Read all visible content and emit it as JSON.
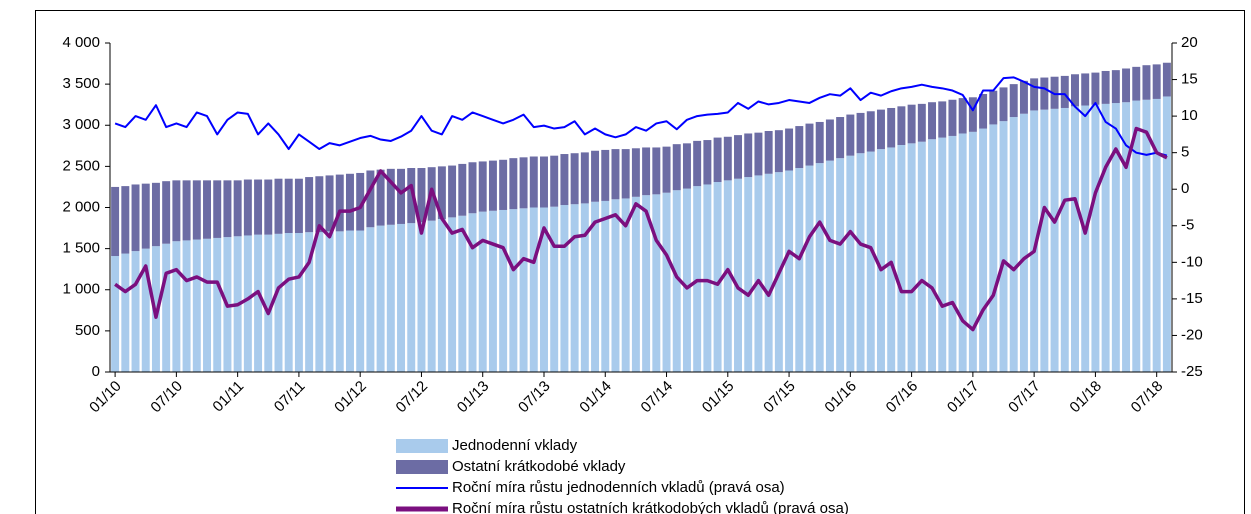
{
  "chart_data": {
    "type": "bar-line",
    "categories": [
      "01/10",
      null,
      null,
      null,
      null,
      null,
      "07/10",
      null,
      null,
      null,
      null,
      null,
      "01/11",
      null,
      null,
      null,
      null,
      null,
      "07/11",
      null,
      null,
      null,
      null,
      null,
      "01/12",
      null,
      null,
      null,
      null,
      null,
      "07/12",
      null,
      null,
      null,
      null,
      null,
      "01/13",
      null,
      null,
      null,
      null,
      null,
      "07/13",
      null,
      null,
      null,
      null,
      null,
      "01/14",
      null,
      null,
      null,
      null,
      null,
      "07/14",
      null,
      null,
      null,
      null,
      null,
      "01/15",
      null,
      null,
      null,
      null,
      null,
      "07/15",
      null,
      null,
      null,
      null,
      null,
      "01/16",
      null,
      null,
      null,
      null,
      null,
      "07/16",
      null,
      null,
      null,
      null,
      null,
      "01/17",
      null,
      null,
      null,
      null,
      null,
      "07/17",
      null,
      null,
      null,
      null,
      null,
      "01/18",
      null,
      null,
      null,
      null,
      null,
      "07/18",
      null
    ],
    "series": [
      {
        "name": "Jednodenní vklady",
        "kind": "bar",
        "color": "#a9cbec",
        "values": [
          1410,
          1440,
          1470,
          1500,
          1530,
          1560,
          1590,
          1600,
          1610,
          1620,
          1630,
          1640,
          1650,
          1660,
          1670,
          1670,
          1680,
          1690,
          1690,
          1700,
          1700,
          1710,
          1710,
          1720,
          1720,
          1760,
          1780,
          1790,
          1800,
          1810,
          1820,
          1840,
          1860,
          1880,
          1900,
          1930,
          1950,
          1960,
          1970,
          1980,
          1990,
          2000,
          2000,
          2010,
          2030,
          2040,
          2050,
          2070,
          2080,
          2100,
          2110,
          2130,
          2150,
          2160,
          2180,
          2210,
          2230,
          2260,
          2280,
          2310,
          2330,
          2350,
          2370,
          2390,
          2410,
          2430,
          2450,
          2480,
          2510,
          2540,
          2570,
          2600,
          2630,
          2660,
          2680,
          2710,
          2730,
          2760,
          2780,
          2800,
          2830,
          2850,
          2870,
          2900,
          2920,
          2960,
          3010,
          3050,
          3100,
          3140,
          3180,
          3190,
          3200,
          3210,
          3230,
          3240,
          3250,
          3260,
          3270,
          3280,
          3300,
          3310,
          3320,
          3350
        ]
      },
      {
        "name": "Ostatní krátkodobé vklady",
        "kind": "bar",
        "color": "#6c6ca4",
        "values": [
          840,
          820,
          810,
          790,
          770,
          760,
          740,
          730,
          720,
          710,
          700,
          690,
          680,
          680,
          670,
          670,
          670,
          660,
          660,
          670,
          680,
          680,
          690,
          690,
          700,
          690,
          680,
          680,
          670,
          670,
          660,
          650,
          640,
          630,
          630,
          620,
          610,
          610,
          610,
          620,
          620,
          620,
          620,
          620,
          620,
          620,
          620,
          620,
          620,
          610,
          600,
          590,
          580,
          570,
          560,
          560,
          550,
          550,
          540,
          540,
          530,
          530,
          530,
          520,
          520,
          510,
          510,
          510,
          510,
          500,
          500,
          500,
          500,
          490,
          490,
          480,
          480,
          470,
          470,
          460,
          450,
          440,
          440,
          430,
          420,
          420,
          410,
          410,
          400,
          400,
          390,
          390,
          390,
          390,
          390,
          390,
          390,
          400,
          400,
          410,
          410,
          420,
          420,
          410
        ]
      },
      {
        "name": "Roční míra růstu jednodenních vkladů (pravá osa)",
        "kind": "line",
        "axis": "y2",
        "color": "#0000ff",
        "values": [
          9,
          8.5,
          10,
          9.5,
          11.5,
          8.5,
          9,
          8.5,
          10.5,
          10,
          7.5,
          9.5,
          10.5,
          10.3,
          7.5,
          9,
          7.5,
          5.5,
          7.5,
          6.5,
          5.5,
          6.3,
          6,
          6.5,
          7,
          7.3,
          6.8,
          6.6,
          7.2,
          8,
          10,
          8,
          7.5,
          10,
          9.5,
          10.5,
          10,
          9.5,
          9,
          9.5,
          10.2,
          8.5,
          8.7,
          8.3,
          8.5,
          9.3,
          7.5,
          8.3,
          7.5,
          7.1,
          7.5,
          8.5,
          8,
          9,
          9.3,
          8.2,
          9.5,
          10,
          10.2,
          10.3,
          10.5,
          11.8,
          11,
          12,
          11.6,
          11.8,
          12.2,
          12,
          11.8,
          12.5,
          13,
          12.8,
          13.8,
          12.2,
          13.2,
          12.8,
          13.4,
          13.8,
          14,
          14.3,
          14,
          13.8,
          13.5,
          12.9,
          10.8,
          13.5,
          13.5,
          15.2,
          15.3,
          14.7,
          14,
          13.8,
          13,
          13,
          11.3,
          10,
          11.8,
          9.2,
          8.3,
          6,
          5,
          4.7,
          5,
          4.6
        ]
      },
      {
        "name": "Roční míra růstu ostatních krátkodobých vkladů (pravá osa)",
        "kind": "line",
        "axis": "y2",
        "color": "#7b0f7f",
        "values": [
          -13,
          -14,
          -13,
          -10.5,
          -17.5,
          -11.5,
          -11,
          -12.5,
          -12,
          -12.7,
          -12.7,
          -16,
          -15.8,
          -15,
          -14,
          -17,
          -13.5,
          -12.3,
          -12,
          -10,
          -5,
          -6.5,
          -3,
          -3,
          -2.5,
          0,
          2.5,
          1,
          -0.5,
          0.5,
          -6,
          0,
          -4,
          -6,
          -5.5,
          -8,
          -7,
          -7.5,
          -8,
          -11,
          -9.5,
          -10,
          -5.3,
          -7.8,
          -7.8,
          -6.5,
          -6.3,
          -4.5,
          -4,
          -3.5,
          -5,
          -2,
          -3,
          -7,
          -9,
          -12,
          -13.5,
          -12.5,
          -12.5,
          -13,
          -11,
          -13.5,
          -14.5,
          -12.5,
          -14.5,
          -11.5,
          -8.5,
          -9.5,
          -6.5,
          -4.5,
          -7,
          -7.5,
          -5.8,
          -7.5,
          -8,
          -11,
          -10,
          -14,
          -14,
          -12.5,
          -13.5,
          -16,
          -15.5,
          -18,
          -19.2,
          -16.5,
          -14.5,
          -9.8,
          -11,
          -9.5,
          -8.5,
          -2.5,
          -4.5,
          -1.5,
          -1.3,
          -6,
          -0.5,
          3,
          5.5,
          3,
          8.3,
          7.8,
          5,
          4.3
        ]
      }
    ],
    "ylim": [
      0,
      4000
    ],
    "yticks": [
      0,
      500,
      {
        "value": 1000,
        "label": "1 000"
      },
      {
        "value": 1500,
        "label": "1 500"
      },
      {
        "value": 2000,
        "label": "2 000"
      },
      {
        "value": 2500,
        "label": "2 500"
      },
      {
        "value": 3000,
        "label": "3 000"
      },
      {
        "value": 3500,
        "label": "3 500"
      },
      {
        "value": 4000,
        "label": "4 000"
      }
    ],
    "y2lim": [
      -25,
      20
    ],
    "y2ticks": [
      -25,
      -20,
      -15,
      -10,
      -5,
      0,
      5,
      10,
      15,
      20
    ],
    "grid": false
  }
}
